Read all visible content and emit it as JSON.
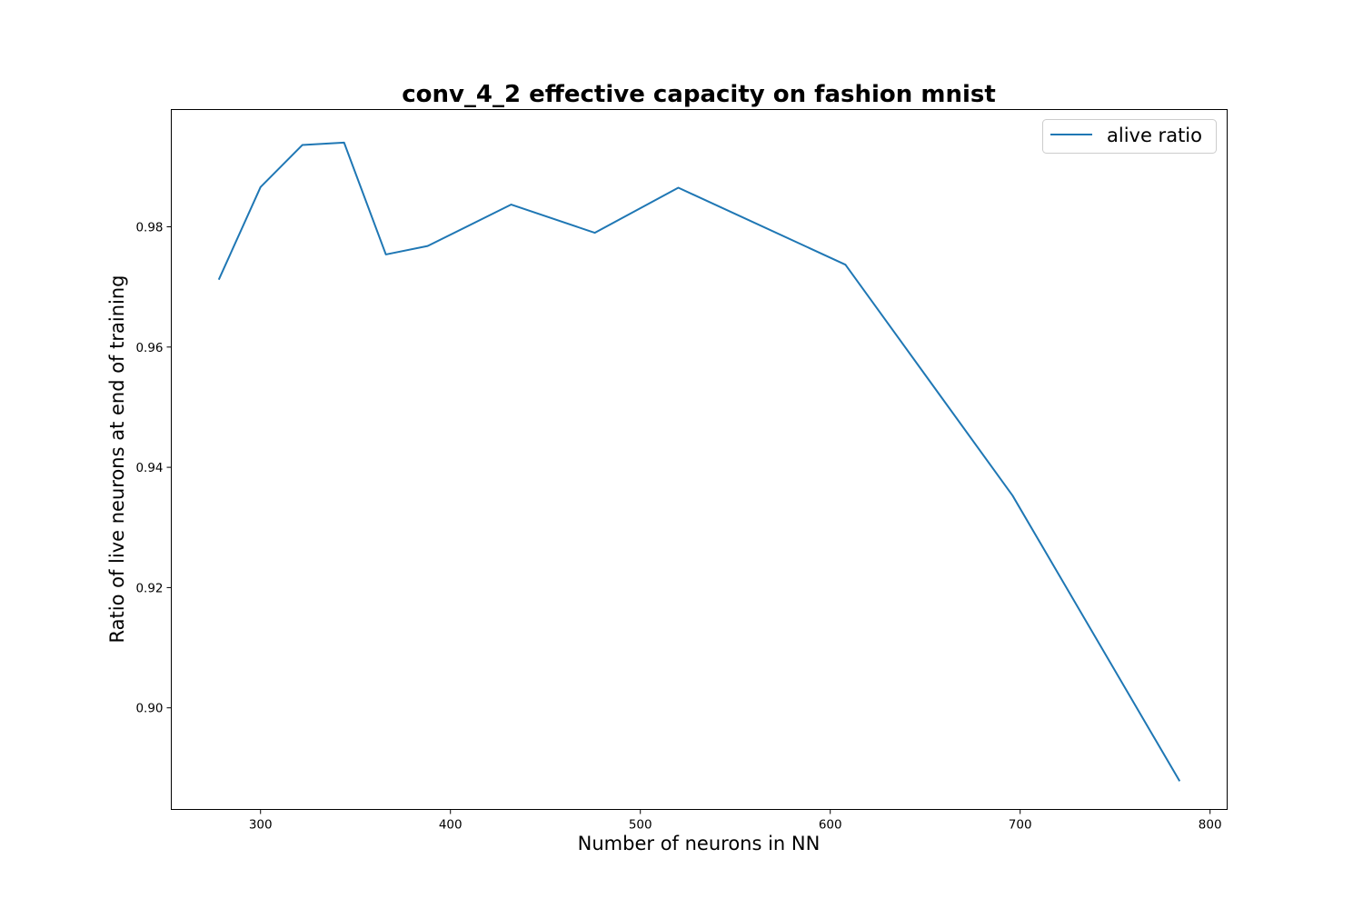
{
  "chart_data": {
    "type": "line",
    "title": "conv_4_2 effective capacity on fashion mnist",
    "xlabel": "Number of neurons in NN",
    "ylabel": "Ratio of live neurons at end of training",
    "xlim": [
      253,
      809
    ],
    "ylim": [
      0.8831,
      0.9995
    ],
    "x_ticks": [
      300,
      400,
      500,
      600,
      700,
      800
    ],
    "x_tick_labels": [
      "300",
      "400",
      "500",
      "600",
      "700",
      "800"
    ],
    "y_ticks": [
      0.9,
      0.92,
      0.94,
      0.96,
      0.98
    ],
    "y_tick_labels": [
      "0.90",
      "0.92",
      "0.94",
      "0.96",
      "0.98"
    ],
    "grid": false,
    "legend_position": "upper right",
    "series": [
      {
        "name": "alive ratio",
        "color": "#1f77b4",
        "x": [
          278,
          300,
          322,
          344,
          366,
          388,
          432,
          476,
          520,
          608,
          696,
          784
        ],
        "y": [
          0.9712,
          0.9866,
          0.9936,
          0.994,
          0.9754,
          0.9768,
          0.9837,
          0.979,
          0.9865,
          0.9737,
          0.9353,
          0.8878
        ]
      }
    ]
  }
}
